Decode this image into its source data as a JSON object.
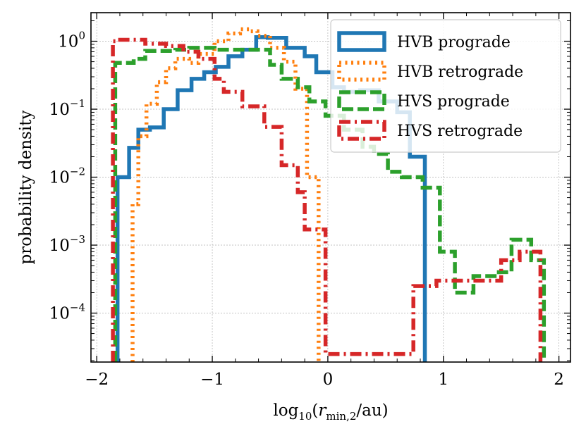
{
  "chart_data": {
    "type": "line",
    "style": "step histogram",
    "xlabel": "log10(r_min,2/au)",
    "ylabel": "probability density",
    "xlim": [
      -2.05,
      2.1
    ],
    "ylim_log10": [
      -4.72,
      0.42
    ],
    "yscale": "log",
    "grid": true,
    "legend_position": "top-right",
    "x_ticks": [
      {
        "value": -2,
        "label": "−2"
      },
      {
        "value": -1,
        "label": "−1"
      },
      {
        "value": 0,
        "label": "0"
      },
      {
        "value": 1,
        "label": "1"
      },
      {
        "value": 2,
        "label": "2"
      }
    ],
    "y_ticks": [
      {
        "exp": 0,
        "base": "10",
        "sup": "0"
      },
      {
        "exp": -1,
        "base": "10",
        "sup": "−1"
      },
      {
        "exp": -2,
        "base": "10",
        "sup": "−2"
      },
      {
        "exp": -3,
        "base": "10",
        "sup": "−3"
      },
      {
        "exp": -4,
        "base": "10",
        "sup": "−4"
      }
    ],
    "series": [
      {
        "name": "HVB prograde",
        "color": "#1f77b4",
        "dash": "solid",
        "edges": [
          -1.82,
          -1.72,
          -1.64,
          -1.54,
          -1.42,
          -1.3,
          -1.18,
          -1.07,
          -0.97,
          -0.86,
          -0.74,
          -0.62,
          -0.52,
          -0.36,
          -0.2,
          -0.1,
          0.04,
          0.14,
          0.28,
          0.44,
          0.6,
          0.71,
          0.84
        ],
        "values": [
          0.01,
          0.027,
          0.05,
          0.054,
          0.1,
          0.19,
          0.28,
          0.35,
          0.42,
          0.6,
          0.75,
          1.15,
          1.12,
          0.8,
          0.6,
          0.35,
          0.21,
          0.18,
          0.19,
          0.13,
          0.09,
          0.02
        ]
      },
      {
        "name": "HVB retrograde",
        "color": "#ff7f0e",
        "dash": "dotted",
        "edges": [
          -1.69,
          -1.64,
          -1.57,
          -1.48,
          -1.4,
          -1.32,
          -1.2,
          -1.12,
          -0.98,
          -0.86,
          -0.76,
          -0.68,
          -0.61,
          -0.5,
          -0.38,
          -0.28,
          -0.18,
          -0.08
        ],
        "values": [
          0.004,
          0.04,
          0.12,
          0.25,
          0.4,
          0.55,
          0.48,
          0.65,
          1.0,
          1.3,
          1.5,
          1.4,
          1.2,
          0.8,
          0.5,
          0.2,
          0.01
        ]
      },
      {
        "name": "HVS prograde",
        "color": "#2ca02c",
        "dash": "dashed",
        "edges": [
          -1.84,
          -1.68,
          -1.58,
          -1.32,
          -1.2,
          -0.98,
          -0.5,
          -0.4,
          -0.26,
          -0.16,
          -0.02,
          0.14,
          0.3,
          0.4,
          0.52,
          0.64,
          0.82,
          0.97,
          1.1,
          1.26,
          1.48,
          1.59,
          1.76,
          1.87
        ],
        "values": [
          0.48,
          0.55,
          0.72,
          0.75,
          0.8,
          0.75,
          0.45,
          0.28,
          0.21,
          0.13,
          0.08,
          0.05,
          0.028,
          0.022,
          0.012,
          0.01,
          0.007,
          0.0008,
          0.0002,
          0.00035,
          0.0004,
          0.0012,
          0.0006
        ]
      },
      {
        "name": "HVS retrograde",
        "color": "#d62728",
        "dash": "dashdot",
        "edges": [
          -1.86,
          -1.82,
          -1.58,
          -1.4,
          -1.25,
          -1.12,
          -0.98,
          -0.9,
          -0.74,
          -0.55,
          -0.4,
          -0.26,
          -0.2,
          -0.02,
          0.74,
          0.94,
          1.5,
          1.66,
          1.84
        ],
        "values": [
          1.0,
          1.05,
          0.92,
          0.85,
          0.7,
          0.55,
          0.28,
          0.18,
          0.11,
          0.055,
          0.015,
          0.006,
          0.0017,
          2.5e-05,
          0.00025,
          0.0003,
          0.0006,
          0.0008
        ]
      }
    ],
    "legend": [
      {
        "label": "HVB prograde",
        "color": "#1f77b4",
        "dash": "solid"
      },
      {
        "label": "HVB retrograde",
        "color": "#ff7f0e",
        "dash": "dotted"
      },
      {
        "label": "HVS prograde",
        "color": "#2ca02c",
        "dash": "dashed"
      },
      {
        "label": "HVS retrograde",
        "color": "#d62728",
        "dash": "dashdot"
      }
    ]
  },
  "axes": {
    "ylabel": "probability density",
    "xlabel_parts": {
      "func": "log",
      "func_sub": "10",
      "var": "r",
      "var_sub": "min,2",
      "unit": "/au"
    }
  }
}
